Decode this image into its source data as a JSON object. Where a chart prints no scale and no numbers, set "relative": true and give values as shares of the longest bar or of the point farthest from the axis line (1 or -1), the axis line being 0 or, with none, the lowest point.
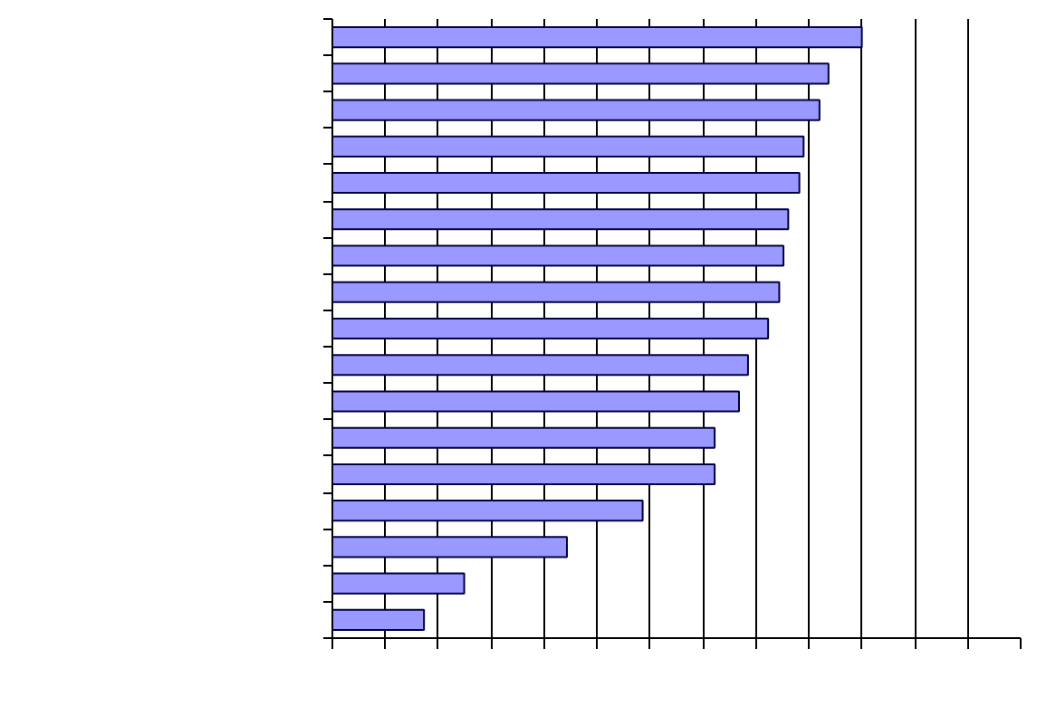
{
  "chart_data": {
    "type": "bar",
    "orientation": "horizontal",
    "relative": true,
    "grid": "x",
    "categories": [
      null,
      null,
      null,
      null,
      null,
      null,
      null,
      null,
      null,
      null,
      null,
      null,
      null,
      null,
      null,
      null,
      null
    ],
    "series": [
      {
        "color": "#9999ff",
        "values": [
          1,
          0.937,
          0.92,
          0.89,
          0.882,
          0.861,
          0.852,
          0.844,
          0.823,
          0.785,
          0.768,
          0.722,
          0.722,
          0.586,
          0.443,
          0.249,
          0.173
        ]
      }
    ]
  }
}
